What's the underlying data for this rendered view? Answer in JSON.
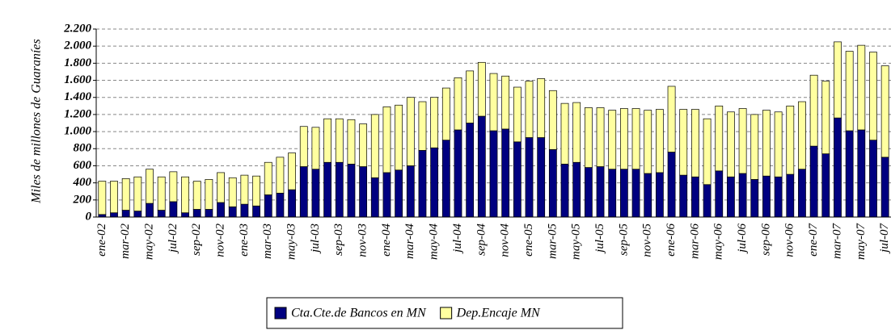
{
  "chart_data": {
    "type": "stacked_bar",
    "y_label": "Miles de millones de Guaraníes",
    "categories": [
      "ene-02",
      null,
      "mar-02",
      null,
      "may-02",
      null,
      "jul-02",
      null,
      "sep-02",
      null,
      "nov-02",
      null,
      "ene-03",
      null,
      "mar-03",
      null,
      "may-03",
      null,
      "jul-03",
      null,
      "sep-03",
      null,
      "nov-03",
      null,
      "ene-04",
      null,
      "mar-04",
      null,
      "may-04",
      null,
      "jul-04",
      null,
      "sep-04",
      null,
      "nov-04",
      null,
      "ene-05",
      null,
      "mar-05",
      null,
      "may-05",
      null,
      "jul-05",
      null,
      "sep-05",
      null,
      "nov-05",
      null,
      "ene-06",
      null,
      "mar-06",
      null,
      "may-06",
      null,
      "jul-06",
      null,
      "sep-06",
      null,
      "nov-06",
      null,
      "ene-07",
      null,
      "mar-07",
      null,
      "may-07",
      null,
      "jul-07"
    ],
    "series": [
      {
        "name": "Cta.Cte.de Bancos en MN",
        "color": "#000080",
        "values": [
          30,
          50,
          80,
          70,
          160,
          80,
          180,
          50,
          90,
          90,
          170,
          120,
          150,
          130,
          260,
          280,
          320,
          590,
          560,
          640,
          640,
          620,
          590,
          460,
          520,
          550,
          600,
          780,
          810,
          900,
          1020,
          1100,
          1180,
          1010,
          1030,
          880,
          930,
          930,
          790,
          620,
          640,
          580,
          590,
          560,
          560,
          560,
          510,
          520,
          760,
          490,
          470,
          380,
          540,
          470,
          510,
          440,
          480,
          470,
          500,
          560,
          830,
          740,
          1160,
          1010,
          1020,
          900,
          700
        ]
      },
      {
        "name": "Dep.Encaje MN",
        "color": "#ffffa0",
        "values": [
          390,
          370,
          370,
          400,
          400,
          390,
          350,
          420,
          330,
          350,
          350,
          340,
          340,
          350,
          380,
          420,
          430,
          470,
          490,
          510,
          510,
          520,
          500,
          740,
          770,
          760,
          800,
          570,
          590,
          610,
          610,
          610,
          630,
          670,
          620,
          640,
          660,
          690,
          690,
          710,
          700,
          700,
          690,
          690,
          710,
          710,
          740,
          740,
          770,
          770,
          790,
          770,
          760,
          760,
          760,
          760,
          770,
          760,
          800,
          790,
          830,
          850,
          890,
          930,
          990,
          1030,
          1070
        ]
      }
    ],
    "ylim": [
      0,
      2200
    ],
    "yticks": [
      0,
      200,
      400,
      600,
      800,
      {
        "value": 1000,
        "label": "1.000"
      },
      {
        "value": 1200,
        "label": "1.200"
      },
      {
        "value": 1400,
        "label": "1.400"
      },
      {
        "value": 1600,
        "label": "1.600"
      },
      {
        "value": 1800,
        "label": "1.800"
      },
      {
        "value": 2000,
        "label": "2.000"
      },
      {
        "value": 2200,
        "label": "2.200"
      }
    ],
    "grid": true,
    "legend": "bottom"
  }
}
